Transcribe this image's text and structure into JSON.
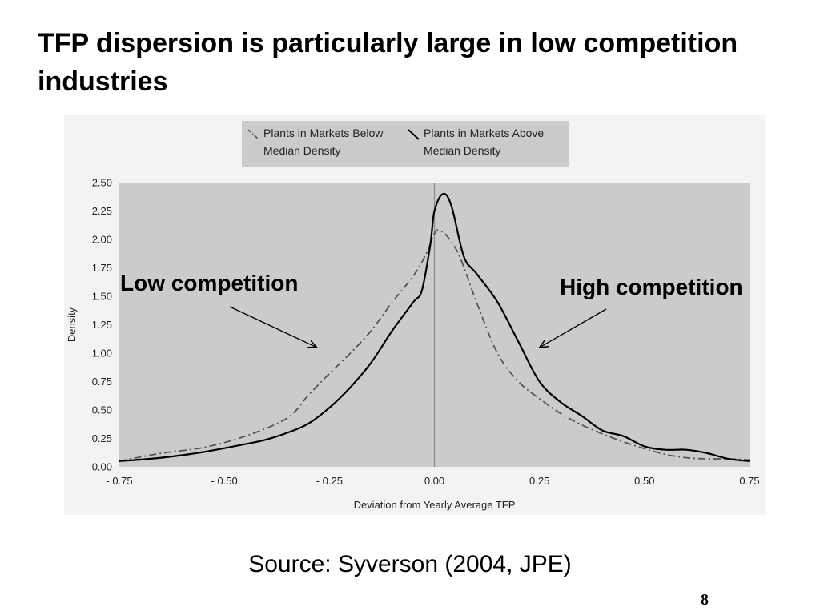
{
  "slide": {
    "title": "TFP dispersion is particularly large in low competition industries",
    "source": "Source: Syverson (2004, JPE)",
    "page_number": "8"
  },
  "chart_data": {
    "type": "line",
    "xlabel": "Deviation from Yearly Average TFP",
    "ylabel": "Density",
    "xlim": [
      -0.75,
      0.75
    ],
    "ylim": [
      0,
      2.5
    ],
    "x_ticks": [
      "- 0.75",
      "- 0.50",
      "- 0.25",
      "0.00",
      "0.25",
      "0.50",
      "0.75"
    ],
    "y_ticks": [
      "0.00",
      "0.25",
      "0.50",
      "0.75",
      "1.00",
      "1.25",
      "1.50",
      "1.75",
      "2.00",
      "2.25",
      "2.50"
    ],
    "reference_line_x": 0,
    "legend_position": "top",
    "plot_background": "#cbcbcb",
    "series": [
      {
        "name": "Plants in Markets Below Median Density",
        "style": "dash-dot",
        "color": "#555555",
        "points": [
          [
            -0.75,
            0.05
          ],
          [
            -0.65,
            0.12
          ],
          [
            -0.55,
            0.17
          ],
          [
            -0.45,
            0.27
          ],
          [
            -0.35,
            0.43
          ],
          [
            -0.3,
            0.63
          ],
          [
            -0.25,
            0.82
          ],
          [
            -0.2,
            1.0
          ],
          [
            -0.15,
            1.2
          ],
          [
            -0.1,
            1.45
          ],
          [
            -0.05,
            1.68
          ],
          [
            -0.02,
            1.87
          ],
          [
            0.0,
            2.05
          ],
          [
            0.01,
            2.08
          ],
          [
            0.03,
            2.03
          ],
          [
            0.06,
            1.85
          ],
          [
            0.1,
            1.45
          ],
          [
            0.15,
            1.0
          ],
          [
            0.2,
            0.75
          ],
          [
            0.25,
            0.6
          ],
          [
            0.3,
            0.47
          ],
          [
            0.35,
            0.37
          ],
          [
            0.4,
            0.29
          ],
          [
            0.45,
            0.22
          ],
          [
            0.5,
            0.16
          ],
          [
            0.55,
            0.11
          ],
          [
            0.6,
            0.08
          ],
          [
            0.65,
            0.07
          ],
          [
            0.7,
            0.07
          ],
          [
            0.75,
            0.06
          ]
        ]
      },
      {
        "name": "Plants in Markets Above Median Density",
        "style": "solid",
        "color": "#000000",
        "points": [
          [
            -0.75,
            0.05
          ],
          [
            -0.65,
            0.08
          ],
          [
            -0.55,
            0.13
          ],
          [
            -0.45,
            0.2
          ],
          [
            -0.4,
            0.24
          ],
          [
            -0.35,
            0.3
          ],
          [
            -0.3,
            0.38
          ],
          [
            -0.25,
            0.52
          ],
          [
            -0.2,
            0.7
          ],
          [
            -0.15,
            0.92
          ],
          [
            -0.1,
            1.2
          ],
          [
            -0.05,
            1.45
          ],
          [
            -0.03,
            1.55
          ],
          [
            -0.01,
            1.95
          ],
          [
            0.0,
            2.25
          ],
          [
            0.02,
            2.4
          ],
          [
            0.04,
            2.3
          ],
          [
            0.07,
            1.85
          ],
          [
            0.1,
            1.7
          ],
          [
            0.15,
            1.45
          ],
          [
            0.2,
            1.1
          ],
          [
            0.25,
            0.75
          ],
          [
            0.3,
            0.57
          ],
          [
            0.35,
            0.45
          ],
          [
            0.4,
            0.32
          ],
          [
            0.45,
            0.27
          ],
          [
            0.5,
            0.18
          ],
          [
            0.55,
            0.15
          ],
          [
            0.6,
            0.15
          ],
          [
            0.65,
            0.12
          ],
          [
            0.7,
            0.07
          ],
          [
            0.75,
            0.05
          ]
        ]
      }
    ],
    "annotations": [
      {
        "text": "Low competition",
        "arrow_to": [
          -0.28,
          1.05
        ]
      },
      {
        "text": "High competition",
        "arrow_to": [
          0.25,
          1.05
        ]
      }
    ]
  }
}
